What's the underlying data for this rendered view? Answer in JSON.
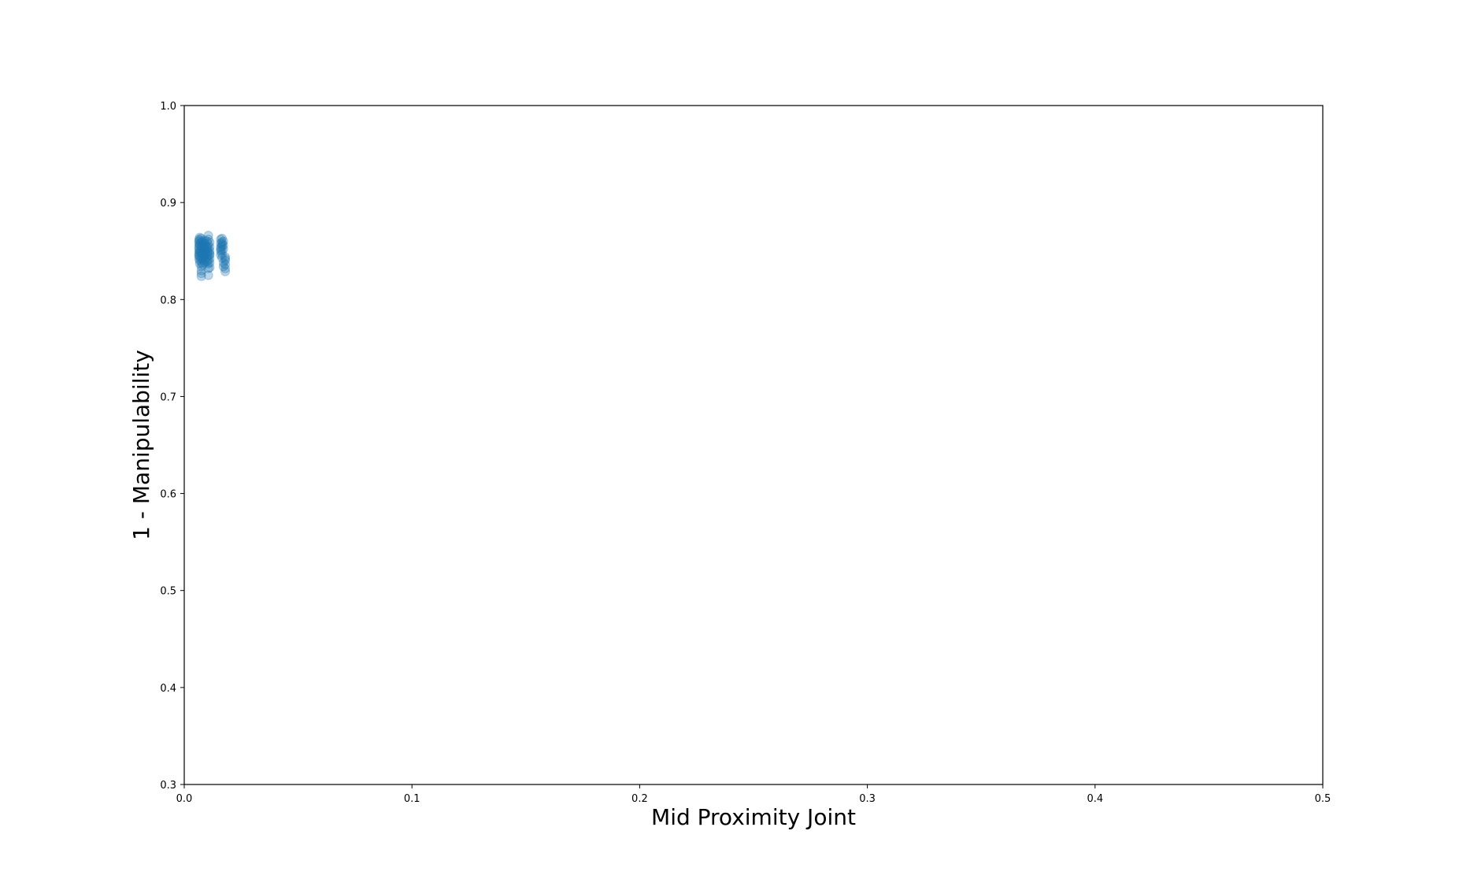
{
  "chart_data": {
    "type": "scatter",
    "title": "",
    "xlabel": "Mid Proximity Joint",
    "ylabel": "1 - Manipulability",
    "xlim": [
      0.0,
      0.5
    ],
    "ylim": [
      0.3,
      1.0
    ],
    "xticks": [
      "0.0",
      "0.1",
      "0.2",
      "0.3",
      "0.4",
      "0.5"
    ],
    "yticks": [
      "0.3",
      "0.4",
      "0.5",
      "0.6",
      "0.7",
      "0.8",
      "0.9",
      "1.0"
    ],
    "grid": false,
    "legend": "none",
    "marker_color": "#1f77b4",
    "marker_alpha": 0.3,
    "series": [
      {
        "x": [
          0.0065,
          0.0065,
          0.0065,
          0.0065,
          0.0065,
          0.0065,
          0.0065,
          0.0065,
          0.0065,
          0.0065,
          0.0068,
          0.0068,
          0.0068,
          0.0068,
          0.0068,
          0.0068,
          0.0068,
          0.0068,
          0.0068,
          0.0075,
          0.0075,
          0.0075,
          0.0075,
          0.0075,
          0.0075,
          0.0075,
          0.0075,
          0.0075,
          0.0075,
          0.0075,
          0.0082,
          0.0082,
          0.0082,
          0.0082,
          0.0082,
          0.0082,
          0.0082,
          0.0082,
          0.0082,
          0.009,
          0.009,
          0.009,
          0.009,
          0.009,
          0.009,
          0.009,
          0.009,
          0.009,
          0.01,
          0.01,
          0.01,
          0.01,
          0.01,
          0.01,
          0.01,
          0.01,
          0.0106,
          0.0106,
          0.0106,
          0.0106,
          0.0106,
          0.0106,
          0.0106,
          0.0106,
          0.0106,
          0.0106,
          0.0112,
          0.0112,
          0.0112,
          0.0112,
          0.0112,
          0.0112,
          0.0112,
          0.0112,
          0.016,
          0.016,
          0.016,
          0.016,
          0.016,
          0.016,
          0.0166,
          0.0166,
          0.0166,
          0.0166,
          0.0166,
          0.0166,
          0.0166,
          0.0172,
          0.0172,
          0.0172,
          0.0172,
          0.0172,
          0.018,
          0.018,
          0.018,
          0.018,
          0.018,
          0.018
        ],
        "y": [
          0.862,
          0.858,
          0.855,
          0.851,
          0.848,
          0.845,
          0.842,
          0.846,
          0.853,
          0.86,
          0.864,
          0.857,
          0.85,
          0.844,
          0.84,
          0.837,
          0.849,
          0.856,
          0.861,
          0.863,
          0.859,
          0.854,
          0.85,
          0.846,
          0.842,
          0.838,
          0.834,
          0.83,
          0.827,
          0.824,
          0.86,
          0.855,
          0.851,
          0.847,
          0.843,
          0.84,
          0.836,
          0.849,
          0.857,
          0.861,
          0.857,
          0.853,
          0.849,
          0.845,
          0.841,
          0.838,
          0.852,
          0.858,
          0.86,
          0.855,
          0.851,
          0.846,
          0.842,
          0.839,
          0.848,
          0.853,
          0.866,
          0.862,
          0.857,
          0.853,
          0.849,
          0.845,
          0.841,
          0.837,
          0.832,
          0.825,
          0.859,
          0.854,
          0.85,
          0.846,
          0.842,
          0.838,
          0.833,
          0.847,
          0.862,
          0.858,
          0.854,
          0.85,
          0.846,
          0.852,
          0.863,
          0.859,
          0.855,
          0.851,
          0.847,
          0.843,
          0.857,
          0.86,
          0.856,
          0.852,
          0.838,
          0.834,
          0.844,
          0.84,
          0.836,
          0.832,
          0.829,
          0.842
        ]
      }
    ]
  }
}
